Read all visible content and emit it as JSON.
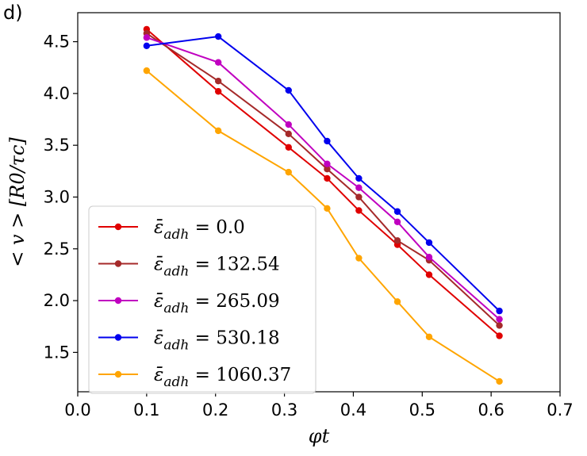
{
  "panel_label": "d)",
  "chart_data": {
    "type": "line",
    "xlabel": "φt",
    "ylabel": "< v > [R0/τc]",
    "xlim": [
      0.0,
      0.7
    ],
    "ylim": [
      1.12,
      4.78
    ],
    "xticks": [
      0.0,
      0.1,
      0.2,
      0.3,
      0.4,
      0.5,
      0.6,
      0.7
    ],
    "xtick_labels": [
      "0.0",
      "0.1",
      "0.2",
      "0.3",
      "0.4",
      "0.5",
      "0.6",
      "0.7"
    ],
    "yticks": [
      1.5,
      2.0,
      2.5,
      3.0,
      3.5,
      4.0,
      4.5
    ],
    "ytick_labels": [
      "1.5",
      "2.0",
      "2.5",
      "3.0",
      "3.5",
      "4.0",
      "4.5"
    ],
    "legend_position": "lower-left",
    "x": [
      0.1,
      0.204,
      0.306,
      0.362,
      0.408,
      0.464,
      0.51,
      0.612
    ],
    "series": [
      {
        "name": "ε̄adh = 0.0",
        "prefix": "ε̄",
        "sub": "adh",
        "suffix": " = 0.0",
        "color": "#e00000",
        "values": [
          4.62,
          4.02,
          3.48,
          3.18,
          2.87,
          2.54,
          2.25,
          1.66
        ]
      },
      {
        "name": "ε̄adh = 132.54",
        "prefix": "ε̄",
        "sub": "adh",
        "suffix": " = 132.54",
        "color": "#a52a2a",
        "values": [
          4.58,
          4.12,
          3.61,
          3.27,
          3.0,
          2.58,
          2.39,
          1.76
        ]
      },
      {
        "name": "ε̄adh = 265.09",
        "prefix": "ε̄",
        "sub": "adh",
        "suffix": " = 265.09",
        "color": "#c000c0",
        "values": [
          4.54,
          4.3,
          3.7,
          3.32,
          3.09,
          2.76,
          2.42,
          1.82
        ]
      },
      {
        "name": "ε̄adh = 530.18",
        "prefix": "ε̄",
        "sub": "adh",
        "suffix": " = 530.18",
        "color": "#0000ee",
        "values": [
          4.46,
          4.55,
          4.03,
          3.54,
          3.18,
          2.86,
          2.56,
          1.9
        ]
      },
      {
        "name": "ε̄adh = 1060.37",
        "prefix": "ε̄",
        "sub": "adh",
        "suffix": " = 1060.37",
        "color": "#ffa500",
        "values": [
          4.22,
          3.64,
          3.24,
          2.89,
          2.41,
          1.99,
          1.65,
          1.22
        ]
      }
    ]
  }
}
